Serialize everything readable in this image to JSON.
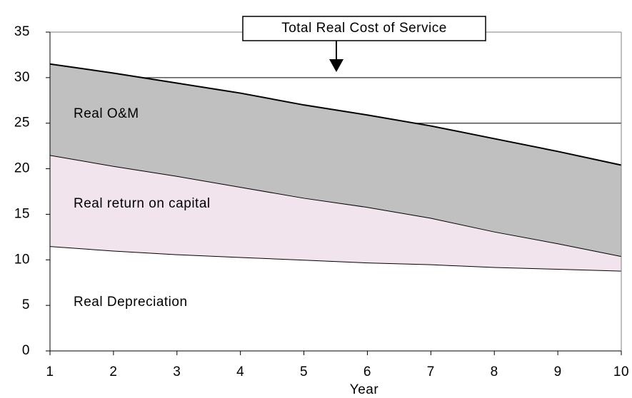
{
  "chart_data": {
    "type": "stacked_area",
    "x": [
      1,
      2,
      3,
      4,
      5,
      6,
      7,
      8,
      9,
      10
    ],
    "xlabel": "Year",
    "series": [
      {
        "name": "Real Depreciation",
        "color": "#ffffff",
        "values": [
          11.5,
          11.0,
          10.6,
          10.3,
          10.0,
          9.7,
          9.5,
          9.2,
          9.0,
          8.8
        ]
      },
      {
        "name": "Real return on capital",
        "color": "#f2e4ec",
        "values": [
          10.0,
          9.3,
          8.6,
          7.7,
          6.8,
          6.1,
          5.1,
          3.9,
          2.8,
          1.6
        ]
      },
      {
        "name": "Real O&M",
        "color": "#c0c0c0",
        "values": [
          10.0,
          10.2,
          10.2,
          10.3,
          10.2,
          10.1,
          10.1,
          10.2,
          10.1,
          10.0
        ]
      }
    ],
    "annotation": "Total Real Cost of Service",
    "xlim": [
      1,
      10
    ],
    "xticks": [
      1,
      2,
      3,
      4,
      5,
      6,
      7,
      8,
      9,
      10
    ],
    "ylim": [
      0,
      35
    ],
    "yticks": [
      0,
      5,
      10,
      15,
      20,
      25,
      30,
      35
    ],
    "grid": true
  }
}
